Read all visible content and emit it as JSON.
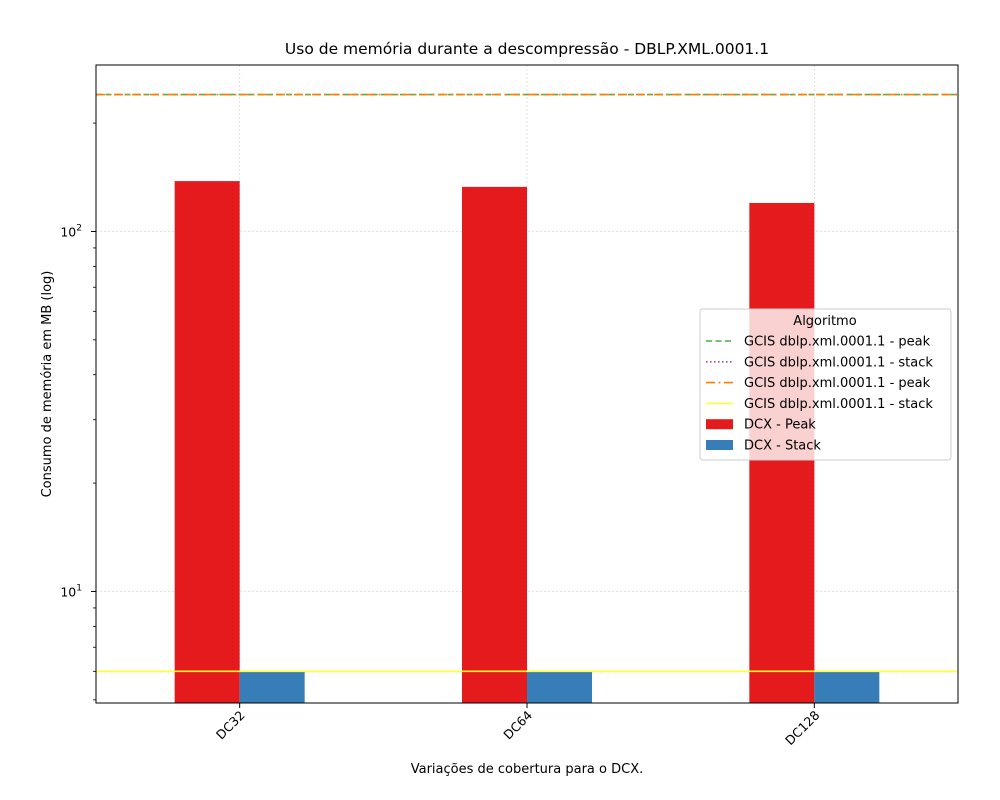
{
  "chart_data": {
    "type": "bar",
    "title": "Uso de memória durante a descompressão -  DBLP.XML.0001.1",
    "xlabel": "Variações de cobertura para o DCX.",
    "ylabel": "Consumo de memória em MB (log)",
    "yscale": "log",
    "ylim": [
      4.9,
      290
    ],
    "yticks": [
      {
        "value": 10,
        "base": "10",
        "exp": "1"
      },
      {
        "value": 100,
        "base": "10",
        "exp": "2"
      }
    ],
    "categories": [
      "DC32",
      "DC64",
      "DC128"
    ],
    "grid": true,
    "series": [
      {
        "name": "DCX - Peak",
        "values": [
          138,
          133,
          120
        ],
        "color": "#e41a1c"
      },
      {
        "name": "DCX - Stack",
        "values": [
          6.0,
          6.0,
          6.0
        ],
        "color": "#377eb8"
      }
    ],
    "reference_lines": [
      {
        "name": "GCIS dblp.xml.0001.1 - peak",
        "value": 240,
        "color": "#4daf4a",
        "style": "dashed"
      },
      {
        "name": "GCIS dblp.xml.0001.1 - stack",
        "value": 6.0,
        "color": "#984ea3",
        "style": "dotted"
      },
      {
        "name": "GCIS dblp.xml.0001.1 - peak",
        "value": 240,
        "color": "#ff7f00",
        "style": "dashdot"
      },
      {
        "name": "GCIS dblp.xml.0001.1 - stack",
        "value": 6.0,
        "color": "#ffff33",
        "style": "solid"
      }
    ],
    "legend": {
      "title": "Algoritmo",
      "placement": "center-right",
      "entries": [
        {
          "label": "GCIS dblp.xml.0001.1 - peak",
          "kind": "line",
          "color": "#4daf4a",
          "style": "dashed"
        },
        {
          "label": "GCIS dblp.xml.0001.1 - stack",
          "kind": "line",
          "color": "#984ea3",
          "style": "dotted"
        },
        {
          "label": "GCIS dblp.xml.0001.1 - peak",
          "kind": "line",
          "color": "#ff7f00",
          "style": "dashdot"
        },
        {
          "label": "GCIS dblp.xml.0001.1 - stack",
          "kind": "line",
          "color": "#ffff33",
          "style": "solid"
        },
        {
          "label": "DCX - Peak",
          "kind": "patch",
          "color": "#e41a1c"
        },
        {
          "label": "DCX - Stack",
          "kind": "patch",
          "color": "#377eb8"
        }
      ]
    }
  }
}
